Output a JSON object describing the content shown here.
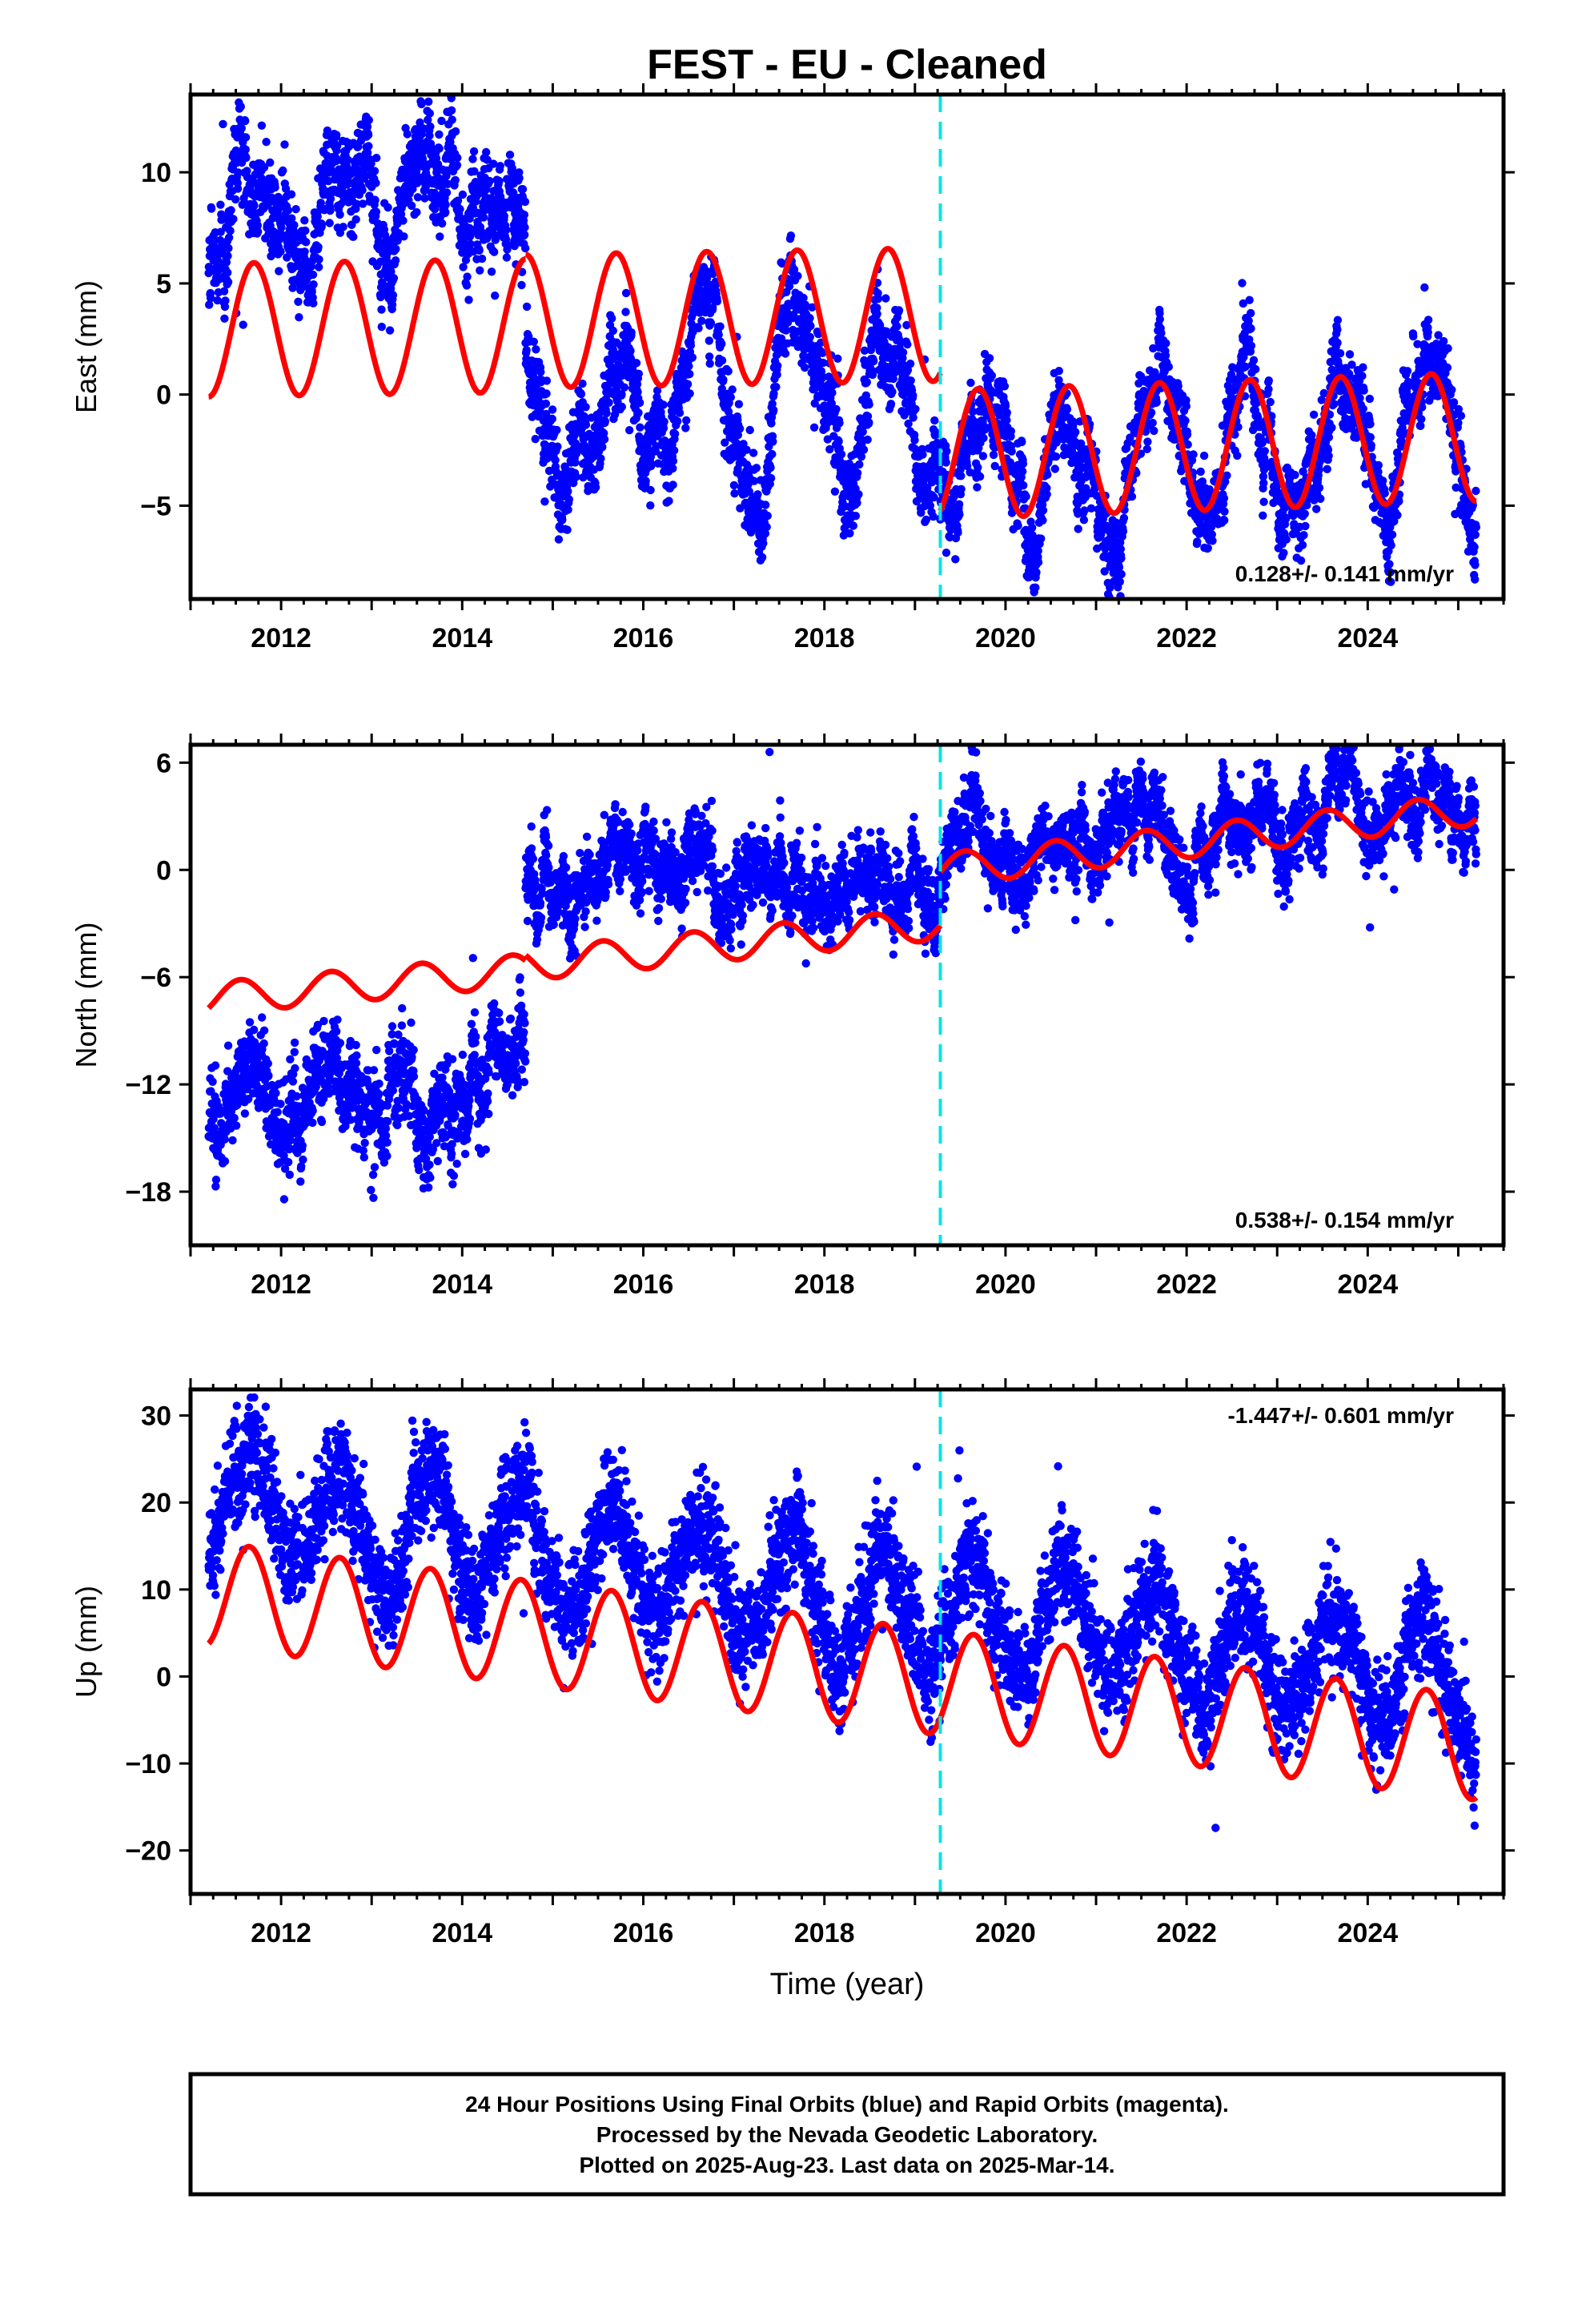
{
  "title": "FEST  - EU - Cleaned",
  "x_axis_label": "Time (year)",
  "footer": {
    "line1": "24 Hour Positions Using Final Orbits (blue) and Rapid Orbits (magenta).",
    "line2": "Processed by the Nevada Geodetic Laboratory.",
    "line3": "Plotted on 2025-Aug-23. Last data on 2025-Mar-14."
  },
  "colors": {
    "final_orbits": "#0000ff",
    "model": "#ff0000",
    "equipment_change": "#00e5e5"
  },
  "chart_data": [
    {
      "type": "scatter",
      "ylabel": "East (mm)",
      "xlabel": "",
      "xlim": [
        2011.0,
        2025.5
      ],
      "ylim": [
        -9.2,
        13.5
      ],
      "xticks": [
        2012,
        2014,
        2016,
        2018,
        2020,
        2022,
        2024
      ],
      "yticks": [
        -5,
        0,
        5,
        10
      ],
      "ytick_labels": [
        "−5",
        "0",
        "5",
        "10"
      ],
      "grid": false,
      "rate_label": "0.128+/- 0.141 mm/yr",
      "rate_position": "bottom-right",
      "equipment_change_year": 2019.28,
      "data_span": [
        2011.2,
        2025.2
      ],
      "offset_years": [
        2014.7,
        2019.28
      ],
      "series": [
        {
          "segment": [
            2011.2,
            2014.7
          ],
          "mean": 8.3,
          "trend": 0.3,
          "amplitude": 2.0,
          "phase": 0.45,
          "scatter": 1.2
        },
        {
          "segment": [
            2014.7,
            2019.28
          ],
          "mean": -0.2,
          "trend": 0.05,
          "amplitude": 2.8,
          "phase": 0.45,
          "scatter": 1.1
        },
        {
          "segment": [
            2019.28,
            2025.2
          ],
          "mean": -2.4,
          "trend": 0.12,
          "amplitude": 2.9,
          "phase": 0.45,
          "scatter": 1.0
        }
      ],
      "model": [
        {
          "segment": [
            2011.2,
            2014.7
          ],
          "base_start": 2.9,
          "base_end": 3.1,
          "amplitude": 3.0,
          "phase": 0.45
        },
        {
          "segment": [
            2014.7,
            2019.28
          ],
          "base_start": 3.3,
          "base_end": 3.6,
          "amplitude": 3.0,
          "phase": 0.45
        },
        {
          "segment": [
            2019.28,
            2025.2
          ],
          "base_start": -2.7,
          "base_end": -1.9,
          "amplitude": 2.9,
          "phase": 0.45
        }
      ]
    },
    {
      "type": "scatter",
      "ylabel": "North (mm)",
      "xlabel": "",
      "xlim": [
        2011.0,
        2025.5
      ],
      "ylim": [
        -21,
        7
      ],
      "xticks": [
        2012,
        2014,
        2016,
        2018,
        2020,
        2022,
        2024
      ],
      "yticks": [
        -18,
        -12,
        -6,
        0,
        6
      ],
      "ytick_labels": [
        "−18",
        "−12",
        "−6",
        "0",
        "6"
      ],
      "grid": false,
      "rate_label": "0.538+/- 0.154 mm/yr",
      "rate_position": "bottom-right",
      "equipment_change_year": 2019.28,
      "data_span": [
        2011.2,
        2025.2
      ],
      "offset_years": [
        2014.7,
        2019.28
      ],
      "series": [
        {
          "segment": [
            2011.2,
            2014.7
          ],
          "mean": -12.8,
          "trend": 0.6,
          "amplitude": 0.8,
          "phase": 0.3,
          "scatter": 1.5
        },
        {
          "segment": [
            2014.7,
            2019.28
          ],
          "mean": -0.5,
          "trend": 0.05,
          "amplitude": 0.6,
          "phase": 0.3,
          "scatter": 1.2
        },
        {
          "segment": [
            2019.28,
            2025.2
          ],
          "mean": 1.8,
          "trend": 0.55,
          "amplitude": 0.8,
          "phase": 0.3,
          "scatter": 1.1
        }
      ],
      "model": [
        {
          "segment": [
            2011.2,
            2014.7
          ],
          "base_start": -7.2,
          "base_end": -5.6,
          "amplitude": 0.9,
          "phase": 0.3
        },
        {
          "segment": [
            2014.7,
            2019.28
          ],
          "base_start": -5.3,
          "base_end": -3.0,
          "amplitude": 0.9,
          "phase": 0.3
        },
        {
          "segment": [
            2019.28,
            2025.2
          ],
          "base_start": 0.0,
          "base_end": 3.4,
          "amplitude": 0.9,
          "phase": 0.3
        }
      ]
    },
    {
      "type": "scatter",
      "ylabel": "Up (mm)",
      "xlabel": "Time (year)",
      "xlim": [
        2011.0,
        2025.5
      ],
      "ylim": [
        -25,
        33
      ],
      "xticks": [
        2012,
        2014,
        2016,
        2018,
        2020,
        2022,
        2024
      ],
      "yticks": [
        -20,
        -10,
        0,
        10,
        20,
        30
      ],
      "ytick_labels": [
        "−20",
        "−10",
        "0",
        "10",
        "20",
        "30"
      ],
      "grid": false,
      "rate_label": "-1.447+/- 0.601 mm/yr",
      "rate_position": "top-right",
      "equipment_change_year": 2019.28,
      "data_span": [
        2011.2,
        2025.2
      ],
      "offset_years": [],
      "series": [
        {
          "segment": [
            2011.2,
            2025.2
          ],
          "mean": 9.5,
          "trend": -1.5,
          "amplitude": 6.0,
          "phase": 0.4,
          "scatter": 4.0
        }
      ],
      "model": [
        {
          "segment": [
            2011.2,
            2025.2
          ],
          "base_start": 9.5,
          "base_end": -8.2,
          "amplitude": 6.0,
          "phase": 0.4
        }
      ]
    }
  ]
}
